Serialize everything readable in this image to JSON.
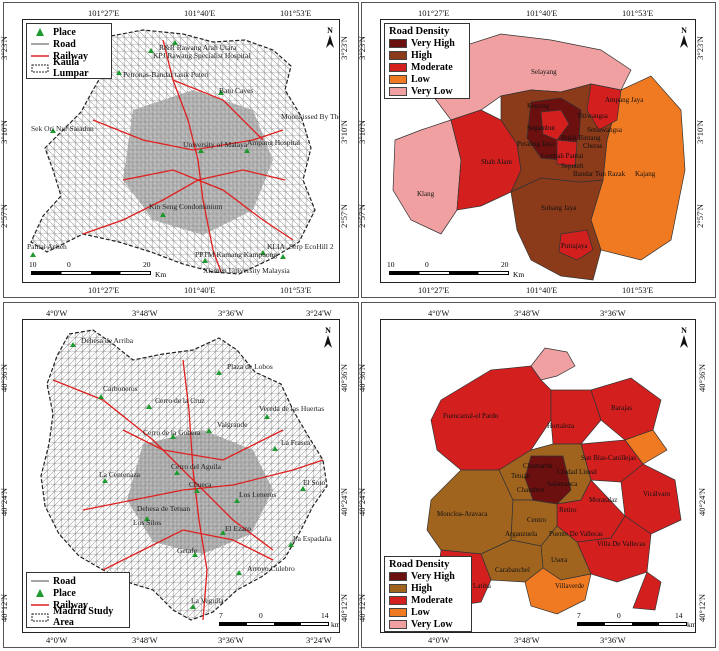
{
  "panels": {
    "kl_roads": {
      "top_ticks": [
        "101°27'E",
        "101°40'E",
        "101°53'E"
      ],
      "bottom_ticks": [
        "101°27'E",
        "101°40'E",
        "101°53'E"
      ],
      "left_ticks": [
        "3°23'N",
        "3°10'N",
        "2°57'N"
      ],
      "right_ticks": [
        "3°23'N",
        "3°10'N",
        "2°57'N"
      ],
      "north": "N",
      "legend": {
        "place": "Place",
        "road": "Road",
        "railway": "Railway",
        "boundary": "Kaula Lumpar"
      },
      "places": [
        "R&R Rawang Arah Utara",
        "KPJ Rawang Specialist Hospital",
        "Petronas-Bandar tasik Puteri",
        "Batu Caves",
        "Moonkissed By The River",
        "Sek Ori Nur Saiadun",
        "University of Malaya",
        "Ampang Hospital",
        "Kin Seng Condominium",
        "KLIA",
        "Serp EcoHill 2",
        "Pantai Acheh",
        "PPTM Kamang Kampuong",
        "Xiamen University Malaysia"
      ],
      "scale": {
        "left": "10",
        "mid": "0",
        "right": "20",
        "unit": "Km"
      }
    },
    "kl_density": {
      "top_ticks": [
        "101°27'E",
        "101°40'E",
        "101°53'E"
      ],
      "bottom_ticks": [
        "101°27'E",
        "101°40'E",
        "101°53'E"
      ],
      "left_ticks": [
        "3°23'N",
        "3°10'N",
        "2°57'N"
      ],
      "right_ticks": [
        "3°23'N",
        "3°10'N",
        "2°57'N"
      ],
      "north": "N",
      "legend": {
        "title": "Road Density",
        "items": [
          {
            "label": "Very High",
            "color": "#6b0f0f"
          },
          {
            "label": "High",
            "color": "#8b3a1a"
          },
          {
            "label": "Moderate",
            "color": "#d41f1f"
          },
          {
            "label": "Low",
            "color": "#f07a22"
          },
          {
            "label": "Very Low",
            "color": "#f0a0a0"
          }
        ]
      },
      "regions": [
        "Selayang",
        "Kepong",
        "Ampang Jaya",
        "Segambut",
        "Titiwangsa",
        "Setiawangsa",
        "Shah Alam",
        "Petaling Jaya",
        "Bukit Bintang",
        "Lembah Pantai",
        "Cheras",
        "Seputeh",
        "Bandar Tun Razak",
        "Klang",
        "Kajang",
        "Subang Jaya",
        "Putrajaya"
      ],
      "scale": {
        "left": "10",
        "mid": "0",
        "right": "20",
        "unit": "Km"
      }
    },
    "madrid_roads": {
      "top_ticks": [
        "4°0'W",
        "3°48'W",
        "3°36'W",
        "3°24'W"
      ],
      "bottom_ticks": [
        "4°0'W",
        "3°48'W",
        "3°36'W",
        "3°24'W"
      ],
      "left_ticks": [
        "40°36'N",
        "40°24'N",
        "40°12'N"
      ],
      "right_ticks": [
        "40°36'N",
        "40°24'N",
        "40°12'N"
      ],
      "north": "N",
      "legend": {
        "road": "Road",
        "place": "Place",
        "railway": "Railway",
        "boundary": "Madrid Study Area"
      },
      "places": [
        "Dehesa de Arriba",
        "Plaza de Lobos",
        "Carboneros",
        "Cerro de la Cruz",
        "Vereda de las Huertas",
        "Valgrande",
        "Cerro de la Gobera",
        "La Frasca",
        "La Centenaza",
        "Cerro del Aguila",
        "El Soto",
        "Chueca",
        "Los Leneros",
        "Dehesa de Tetuan",
        "Los Silos",
        "El Ezaro",
        "La Espadaña",
        "Getafe",
        "Arroyo Culebro",
        "La Vegulla"
      ],
      "scale": {
        "left": "7",
        "mid": "0",
        "right": "14",
        "unit": "km"
      }
    },
    "madrid_density": {
      "top_ticks": [
        "4°0'W",
        "3°48'W",
        "3°36'W"
      ],
      "bottom_ticks": [
        "4°0'W",
        "3°48'W",
        "3°36'W"
      ],
      "left_ticks": [
        "40°36'N",
        "40°24'N",
        "40°12'N"
      ],
      "right_ticks": [
        "40°36'N",
        "40°24'N",
        "40°12'N"
      ],
      "north": "N",
      "legend": {
        "title": "Road Density",
        "items": [
          {
            "label": "Very High",
            "color": "#6b0f0f"
          },
          {
            "label": "High",
            "color": "#a0641f"
          },
          {
            "label": "Moderate",
            "color": "#d41f1f"
          },
          {
            "label": "Low",
            "color": "#f07a22"
          },
          {
            "label": "Very Low",
            "color": "#f0a0a0"
          }
        ]
      },
      "regions": [
        "Fuencarral-el Pardo",
        "Barajas",
        "Hortaleza",
        "Chamartín",
        "San Blas-Canillejas",
        "Ciudad Lineal",
        "Tetuán",
        "Moncloa-Aravaca",
        "Chamberí",
        "Salamanca",
        "Vicálvaro",
        "Moratalaz",
        "Retiro",
        "Centro",
        "Arganzuela",
        "Puente De Vallecas",
        "Villa De Vallecas",
        "Usera",
        "Carabanchel",
        "Latina",
        "Villaverde"
      ],
      "scale": {
        "left": "7",
        "mid": "0",
        "right": "14",
        "unit": "km"
      }
    }
  }
}
